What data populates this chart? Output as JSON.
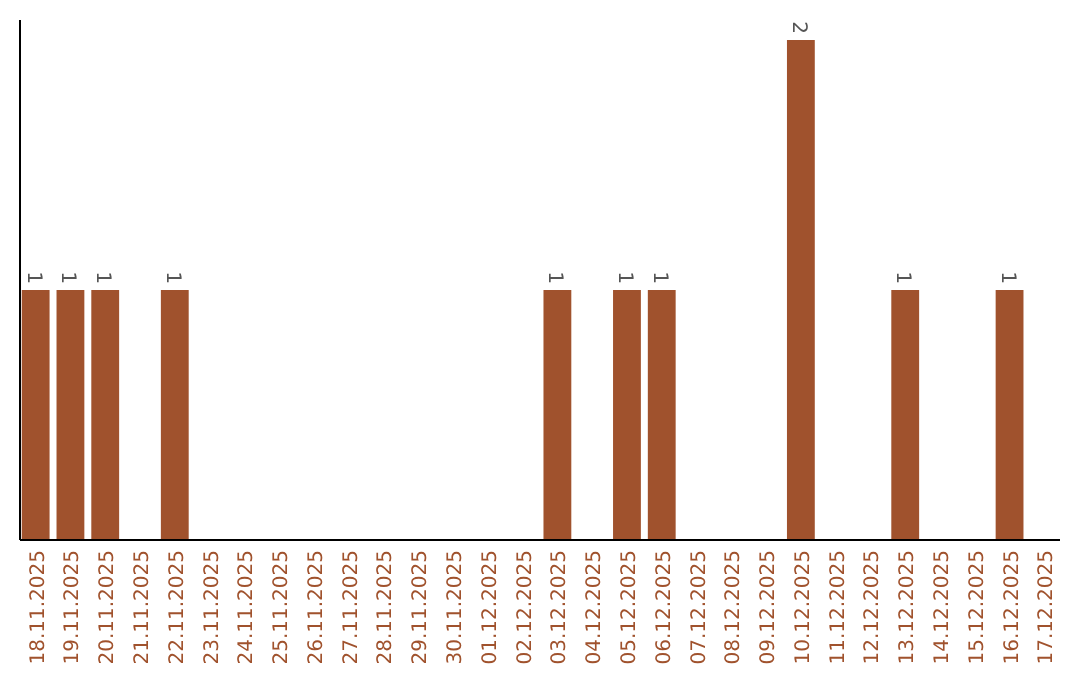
{
  "chart_data": {
    "type": "bar",
    "categories": [
      "18.11.2025",
      "19.11.2025",
      "20.11.2025",
      "21.11.2025",
      "22.11.2025",
      "23.11.2025",
      "24.11.2025",
      "25.11.2025",
      "26.11.2025",
      "27.11.2025",
      "28.11.2025",
      "29.11.2025",
      "30.11.2025",
      "01.12.2025",
      "02.12.2025",
      "03.12.2025",
      "04.12.2025",
      "05.12.2025",
      "06.12.2025",
      "07.12.2025",
      "08.12.2025",
      "09.12.2025",
      "10.12.2025",
      "11.12.2025",
      "12.12.2025",
      "13.12.2025",
      "14.12.2025",
      "15.12.2025",
      "16.12.2025",
      "17.12.2025"
    ],
    "values": [
      1,
      1,
      1,
      0,
      1,
      0,
      0,
      0,
      0,
      0,
      0,
      0,
      0,
      0,
      0,
      1,
      0,
      1,
      1,
      0,
      0,
      0,
      2,
      0,
      0,
      1,
      0,
      0,
      1,
      0
    ],
    "value_labels": [
      "1",
      "1",
      "1",
      null,
      "1",
      null,
      null,
      null,
      null,
      null,
      null,
      null,
      null,
      null,
      null,
      "1",
      null,
      "1",
      "1",
      null,
      null,
      null,
      "2",
      null,
      null,
      "1",
      null,
      null,
      "1",
      null
    ],
    "color": "#a0522d",
    "ylim": [
      0,
      2.08
    ],
    "tick_labels": "x"
  }
}
